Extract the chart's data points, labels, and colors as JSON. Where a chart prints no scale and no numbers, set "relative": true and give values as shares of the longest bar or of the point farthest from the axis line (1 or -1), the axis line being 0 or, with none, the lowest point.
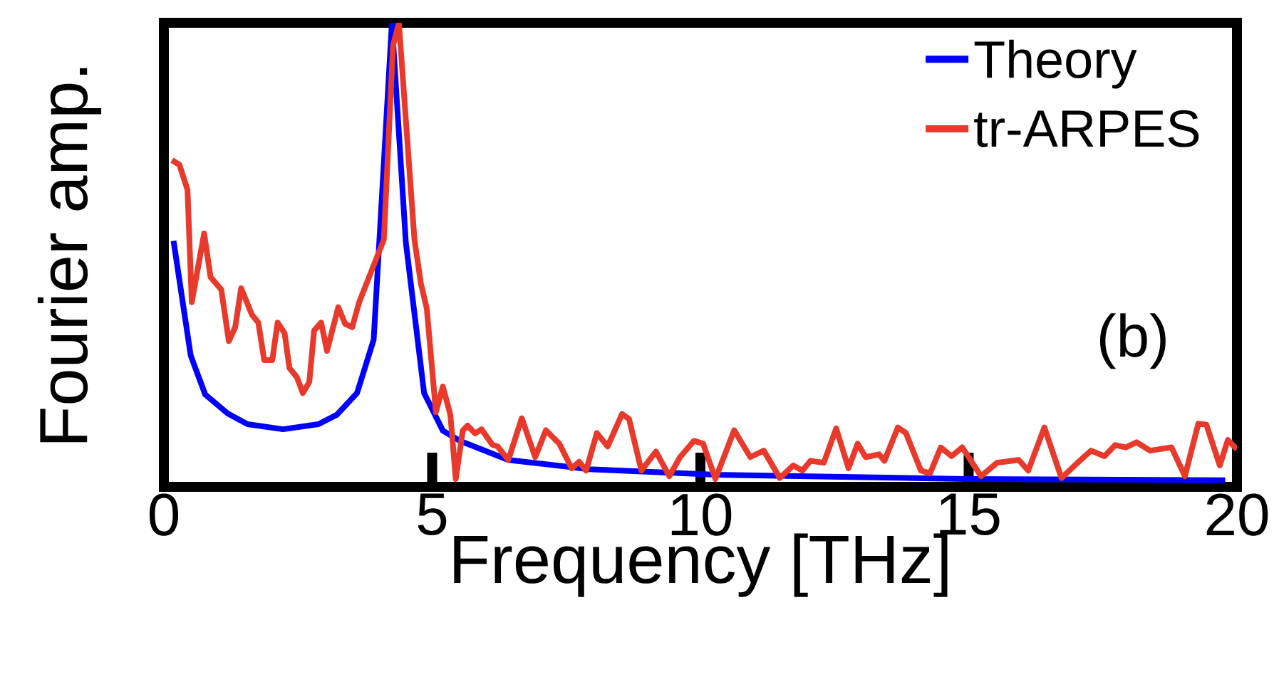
{
  "chart_data": {
    "type": "line",
    "relative": true,
    "xlabel": "Frequency [THz]",
    "ylabel": "Fourier amp.",
    "xlim": [
      0,
      20
    ],
    "xticks": [
      0,
      5,
      10,
      15,
      20
    ],
    "tick_labels": "x",
    "legend": "top right",
    "grid": false,
    "marker": "none",
    "line_style": "solid",
    "annotations": [
      "(b)"
    ],
    "series": [
      {
        "name": "Theory",
        "color": "#0000ff",
        "x": [
          0.18,
          0.5,
          0.77,
          1.19,
          1.56,
          2.22,
          2.88,
          3.22,
          3.6,
          3.91,
          4.25,
          4.51,
          4.85,
          5.2,
          5.52,
          6.42,
          7.92,
          10.3,
          14.93,
          19.78
        ],
        "values": [
          0.53,
          0.283,
          0.199,
          0.158,
          0.135,
          0.124,
          0.135,
          0.155,
          0.202,
          0.317,
          1.0,
          0.526,
          0.202,
          0.121,
          0.099,
          0.058,
          0.038,
          0.026,
          0.017,
          0.014
        ]
      },
      {
        "name": "tr-ARPES",
        "color": "#e8392a",
        "x": [
          0.15,
          0.29,
          0.44,
          0.52,
          0.75,
          0.87,
          1.07,
          1.21,
          1.33,
          1.44,
          1.64,
          1.76,
          1.87,
          2.02,
          2.12,
          2.25,
          2.34,
          2.48,
          2.59,
          2.71,
          2.8,
          2.93,
          3.04,
          3.25,
          3.38,
          3.51,
          3.64,
          4.1,
          4.27,
          4.38,
          4.67,
          4.79,
          4.9,
          5.07,
          5.2,
          5.34,
          5.44,
          5.57,
          5.66,
          5.8,
          5.92,
          6.12,
          6.22,
          6.42,
          6.67,
          6.92,
          7.12,
          7.37,
          7.6,
          7.74,
          7.87,
          8.07,
          8.27,
          8.54,
          8.67,
          8.9,
          9.17,
          9.42,
          9.62,
          9.88,
          10.05,
          10.28,
          10.63,
          10.93,
          11.18,
          11.48,
          11.73,
          11.9,
          12.05,
          12.3,
          12.53,
          12.76,
          12.93,
          13.08,
          13.33,
          13.43,
          13.68,
          13.83,
          14.11,
          14.28,
          14.48,
          14.68,
          14.88,
          15.23,
          15.53,
          15.93,
          16.11,
          16.41,
          16.73,
          17.03,
          17.28,
          17.53,
          17.73,
          17.93,
          18.13,
          18.38,
          18.78,
          19.03,
          19.28,
          19.43,
          19.68,
          19.83,
          20.0
        ],
        "values": [
          0.704,
          0.694,
          0.64,
          0.398,
          0.546,
          0.452,
          0.425,
          0.314,
          0.344,
          0.428,
          0.371,
          0.354,
          0.273,
          0.273,
          0.354,
          0.331,
          0.256,
          0.236,
          0.202,
          0.226,
          0.337,
          0.354,
          0.293,
          0.387,
          0.351,
          0.344,
          0.398,
          0.533,
          0.95,
          1.0,
          0.533,
          0.438,
          0.384,
          0.161,
          0.216,
          0.155,
          0.017,
          0.121,
          0.132,
          0.115,
          0.124,
          0.091,
          0.087,
          0.058,
          0.148,
          0.064,
          0.122,
          0.093,
          0.04,
          0.054,
          0.035,
          0.116,
          0.087,
          0.157,
          0.146,
          0.035,
          0.076,
          0.023,
          0.064,
          0.099,
          0.093,
          0.017,
          0.122,
          0.064,
          0.078,
          0.019,
          0.046,
          0.035,
          0.056,
          0.052,
          0.126,
          0.04,
          0.093,
          0.064,
          0.07,
          0.056,
          0.128,
          0.116,
          0.035,
          0.029,
          0.085,
          0.066,
          0.085,
          0.023,
          0.052,
          0.058,
          0.035,
          0.128,
          0.019,
          0.052,
          0.078,
          0.066,
          0.09,
          0.085,
          0.096,
          0.078,
          0.085,
          0.023,
          0.136,
          0.134,
          0.046,
          0.101,
          0.081
        ]
      }
    ]
  }
}
